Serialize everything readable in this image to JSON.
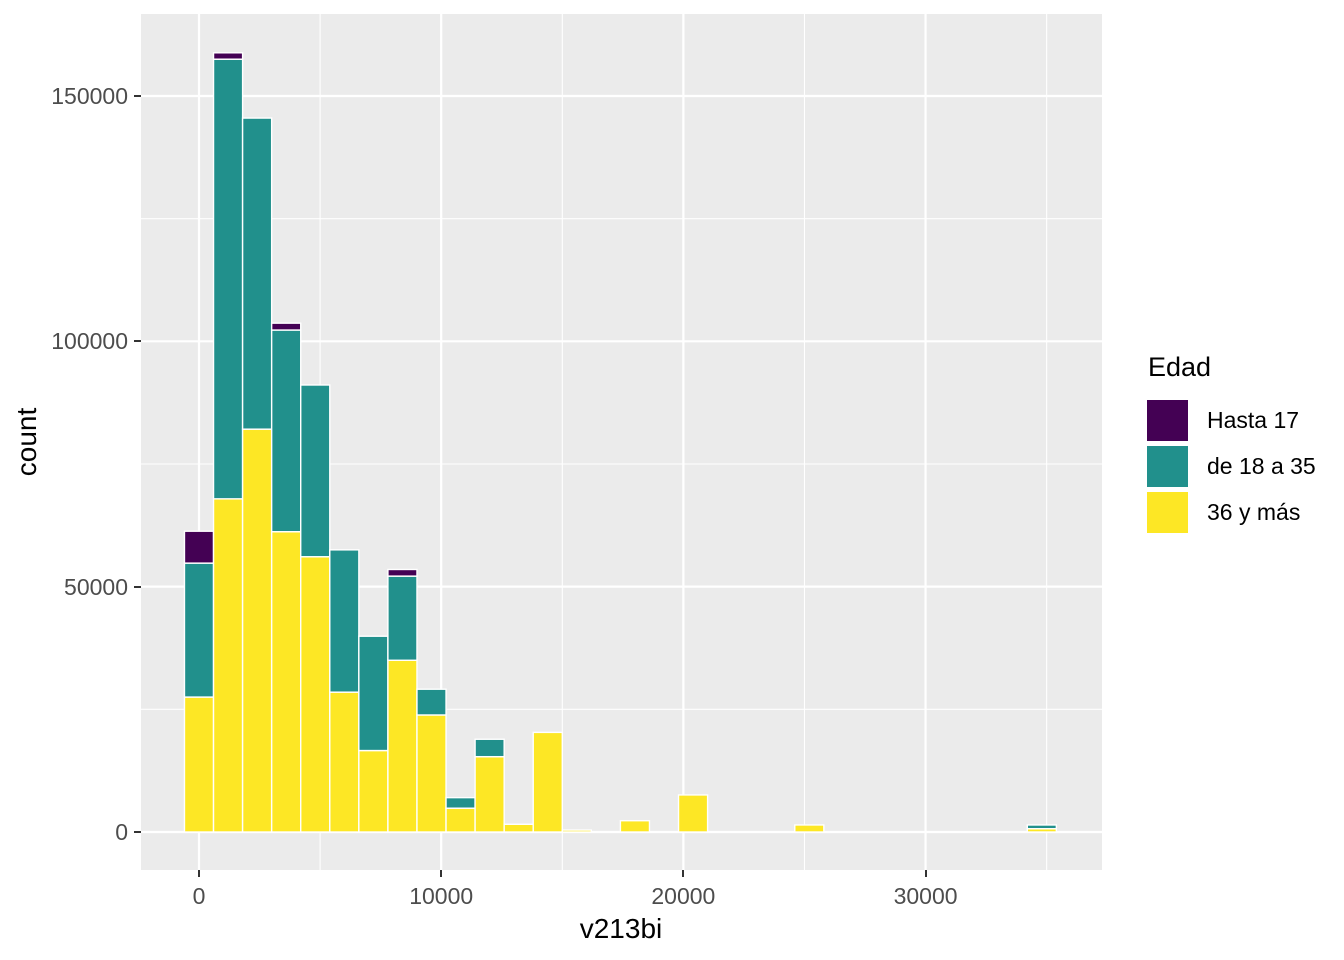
{
  "chart_data": {
    "type": "bar",
    "subtype": "stacked-histogram",
    "title": "",
    "xlabel": "v213bi",
    "ylabel": "count",
    "legend_title": "Edad",
    "legend_position": "right",
    "grid": true,
    "panel_background": "#EBEBEB",
    "gridline_color": "#FFFFFF",
    "tick_text_color": "#4D4D4D",
    "tick_mark_color": "#333333",
    "xlim": [
      -2395,
      37285
    ],
    "ylim": [
      -7745,
      166710
    ],
    "x_ticks": [
      0,
      10000,
      20000,
      30000
    ],
    "x_tick_labels": [
      "0",
      "10000",
      "20000",
      "30000"
    ],
    "x_minor_ticks": [
      5000,
      15000,
      25000,
      35000
    ],
    "y_ticks": [
      0,
      50000,
      100000,
      150000
    ],
    "y_tick_labels": [
      "0",
      "50000",
      "100000",
      "150000"
    ],
    "y_minor_ticks": [
      25000,
      75000,
      125000
    ],
    "bin_width": 1200,
    "bin_centers": [
      0,
      1200,
      2400,
      3600,
      4800,
      6000,
      7200,
      8400,
      9600,
      10800,
      12000,
      13200,
      14400,
      15600,
      18000,
      20400,
      25200,
      34800
    ],
    "stack_order_note": "series listed bottom-to-top of each stacked bar",
    "series": [
      {
        "name": "36 y más",
        "color": "#FDE725",
        "values": [
          27500,
          67900,
          82100,
          61200,
          56100,
          28500,
          16600,
          35000,
          23850,
          4850,
          15350,
          1570,
          20300,
          400,
          2300,
          7550,
          1430,
          670
        ]
      },
      {
        "name": "de 18 a 35",
        "color": "#21908C",
        "values": [
          27300,
          89600,
          63400,
          41100,
          35000,
          29000,
          23300,
          17150,
          5250,
          2150,
          3550,
          0,
          0,
          0,
          0,
          0,
          0,
          760
        ]
      },
      {
        "name": "Hasta 17",
        "color": "#440154",
        "values": [
          6500,
          1300,
          0,
          1400,
          0,
          0,
          0,
          1350,
          0,
          0,
          0,
          0,
          0,
          0,
          0,
          0,
          0,
          0
        ]
      }
    ],
    "bar_totals": [
      61300,
      158800,
      145500,
      103700,
      91100,
      57500,
      39900,
      53500,
      29100,
      7000,
      18900,
      1570,
      20300,
      400,
      2300,
      7550,
      1430,
      1430
    ]
  },
  "axes": {
    "x_title": "v213bi",
    "y_title": "count"
  },
  "legend": {
    "title": "Edad",
    "items": [
      {
        "label": "Hasta 17",
        "color": "#440154"
      },
      {
        "label": "de 18 a 35",
        "color": "#21908C"
      },
      {
        "label": "36 y más",
        "color": "#FDE725"
      }
    ]
  }
}
